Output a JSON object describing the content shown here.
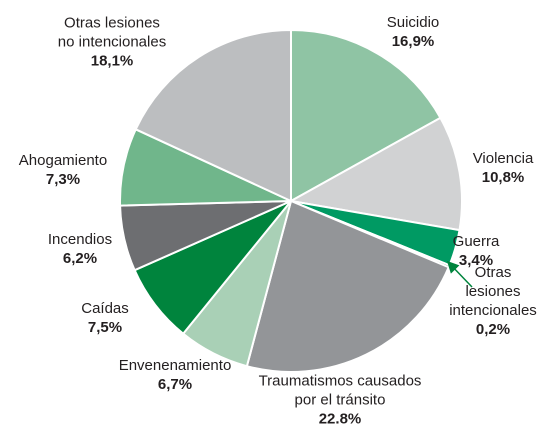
{
  "chart_data": {
    "type": "pie",
    "categories": [
      "Suicidio",
      "Violencia",
      "Guerra",
      "Otras lesiones\nintencionales",
      "Traumatismos causados\npor el tránsito",
      "Envenenamiento",
      "Caídas",
      "Incendios",
      "Ahogamiento",
      "Otras lesiones\nno intencionales"
    ],
    "values": [
      16.9,
      10.8,
      3.4,
      0.2,
      22.8,
      6.7,
      7.5,
      6.2,
      7.3,
      18.1
    ],
    "value_labels": [
      "16,9%",
      "10,8%",
      "3,4%",
      "0,2%",
      "22.8%",
      "6,7%",
      "7,5%",
      "6,2%",
      "7,3%",
      "18,1%"
    ],
    "colors": [
      "#8fc4a4",
      "#d1d2d3",
      "#009a63",
      "#007a3d",
      "#939598",
      "#a9d0b6",
      "#00843d",
      "#6d6e71",
      "#70b68b",
      "#bcbec0"
    ]
  }
}
